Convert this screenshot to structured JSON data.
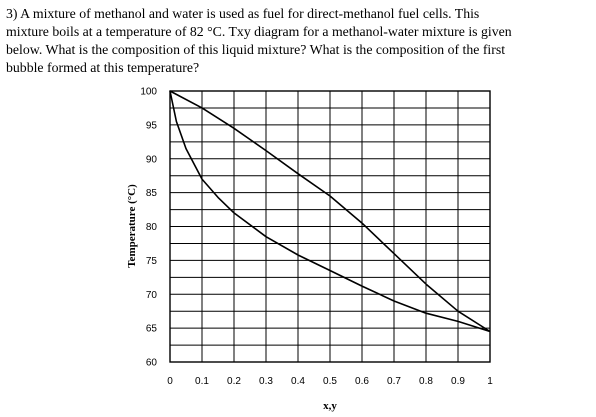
{
  "question": {
    "lines": [
      "3) A mixture of methanol and water is used as fuel for direct-methanol fuel cells. This",
      "mixture boils at a temperature of 82 °C. Txy diagram for a methanol-water mixture is given",
      "below.  What is the composition of this liquid mixture? What is the composition of the first",
      "bubble formed at this temperature?"
    ]
  },
  "chart_data": {
    "type": "line",
    "title": "",
    "xlabel": "x,y",
    "ylabel": "Temperature (°C)",
    "xlim": [
      0,
      1
    ],
    "ylim": [
      60,
      100
    ],
    "x_ticks": [
      "0",
      "0.1",
      "0.2",
      "0.3",
      "0.4",
      "0.5",
      "0.6",
      "0.7",
      "0.8",
      "0.9",
      "1"
    ],
    "y_ticks": [
      "60",
      "65",
      "70",
      "75",
      "80",
      "85",
      "90",
      "95",
      "100"
    ],
    "grid": true,
    "series": [
      {
        "x": [
          0,
          0.02,
          0.05,
          0.1,
          0.15,
          0.2,
          0.3,
          0.4,
          0.5,
          0.6,
          0.7,
          0.8,
          0.9,
          1.0
        ],
        "y": [
          100,
          95.5,
          91.5,
          87,
          84.3,
          82,
          78.5,
          75.8,
          73.5,
          71.2,
          69,
          67.2,
          66,
          64.5
        ]
      },
      {
        "x": [
          0,
          0.1,
          0.2,
          0.3,
          0.4,
          0.5,
          0.6,
          0.7,
          0.8,
          0.9,
          1.0
        ],
        "y": [
          100,
          97.5,
          94.5,
          91.2,
          87.8,
          84.5,
          80.5,
          76,
          71.5,
          67.5,
          64.5
        ]
      }
    ]
  }
}
